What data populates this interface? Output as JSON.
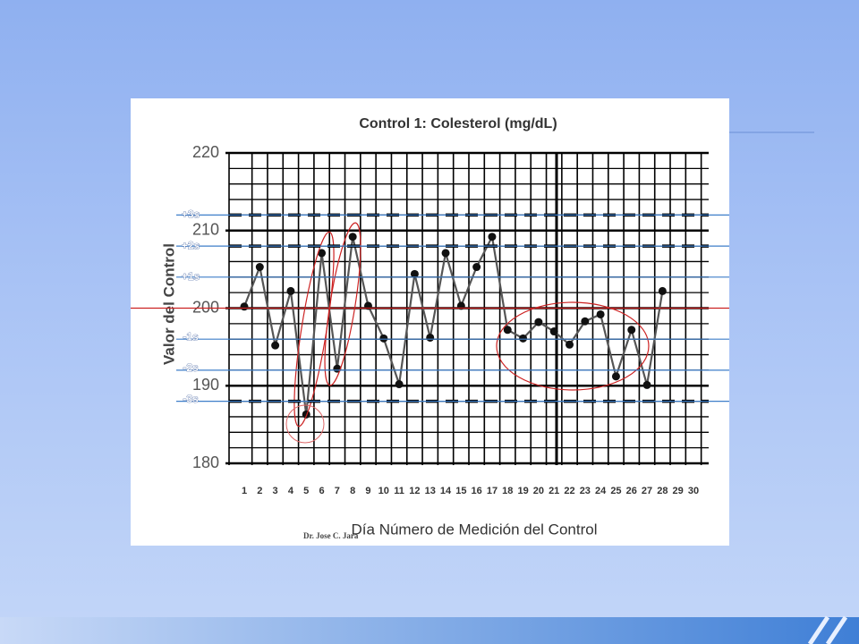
{
  "chart_data": {
    "type": "line",
    "title": "Control 1: Colesterol (mg/dL)",
    "y_label": "Valor del Control",
    "x_label": "Día Número de Medición del Control",
    "credit": "Dr. Jose C. Jara",
    "categories": [
      "1",
      "2",
      "3",
      "4",
      "5",
      "6",
      "7",
      "8",
      "9",
      "10",
      "11",
      "12",
      "13",
      "14",
      "15",
      "16",
      "17",
      "18",
      "19",
      "20",
      "21",
      "22",
      "23",
      "24",
      "25",
      "26",
      "27",
      "28",
      "29",
      "30"
    ],
    "series": [
      {
        "color": "#555555",
        "values": [
          200.2,
          205.3,
          195.2,
          202.2,
          186.3,
          207.1,
          192.2,
          209.2,
          200.3,
          196.1,
          190.2,
          204.4,
          196.2,
          207.1,
          200.3,
          205.3,
          209.2,
          197.2,
          196.1,
          198.2,
          197.0,
          195.3,
          198.3,
          199.2,
          191.2,
          197.2,
          190.1,
          202.2,
          null,
          null
        ]
      }
    ],
    "ylim": [
      180,
      220
    ],
    "yticks": [
      180,
      190,
      200,
      210,
      220
    ],
    "y_minor_ticks": [
      182,
      184,
      186,
      188,
      192,
      194,
      196,
      198,
      202,
      204,
      206,
      208,
      212,
      214,
      216,
      218
    ],
    "grid": true,
    "mean": 200,
    "limits": [
      {
        "label": "+3s",
        "value": 212,
        "dashed": true
      },
      {
        "label": "+2s",
        "value": 208,
        "dashed": true
      },
      {
        "label": "+1s",
        "value": 204,
        "dashed": false
      },
      {
        "label": "-1s",
        "value": 196,
        "dashed": false
      },
      {
        "label": "-2s",
        "value": 192,
        "dashed": false
      },
      {
        "label": "-3s",
        "value": 188,
        "dashed": true
      }
    ]
  }
}
